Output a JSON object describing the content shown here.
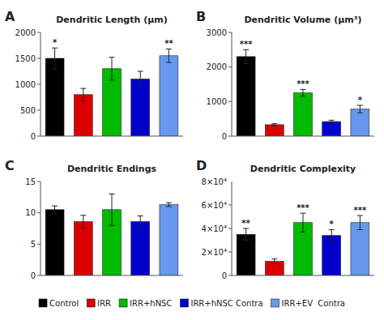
{
  "chart_data": [
    {
      "type": "bar",
      "title": "Dendritic Length (μm)",
      "categories": [
        "Control",
        "IRR",
        "IRR+hNSC",
        "IRR+hNSC Contra",
        "IRR+EV  Contra"
      ],
      "values": [
        1500,
        800,
        1300,
        1100,
        1550
      ],
      "errors": [
        200,
        120,
        220,
        150,
        130
      ],
      "colors": [
        "#000000",
        "#dd0000",
        "#00bb00",
        "#0000cc",
        "#6699ee"
      ],
      "ylim": [
        0,
        2000
      ],
      "yticks": [
        0,
        500,
        1000,
        1500,
        2000
      ],
      "annotations": [
        {
          "text": "A"
        },
        {
          "text": "*",
          "category": "Control"
        },
        {
          "text": "**",
          "category": "IRR+EV  Contra"
        }
      ],
      "grid": false,
      "tick_labels": "y",
      "legend": "bottom"
    },
    {
      "type": "bar",
      "title": "Dendritic Volume (μm³)",
      "categories": [
        "Control",
        "IRR",
        "IRR+hNSC",
        "IRR+hNSC Contra",
        "IRR+EV  Contra"
      ],
      "values": [
        2300,
        330,
        1250,
        420,
        780
      ],
      "errors": [
        200,
        30,
        100,
        40,
        110
      ],
      "colors": [
        "#000000",
        "#dd0000",
        "#00bb00",
        "#0000cc",
        "#6699ee"
      ],
      "ylim": [
        0,
        3000
      ],
      "yticks": [
        0,
        1000,
        2000,
        3000
      ],
      "annotations": [
        {
          "text": "B"
        },
        {
          "text": "***",
          "category": "Control"
        },
        {
          "text": "***",
          "category": "IRR+hNSC"
        },
        {
          "text": "*",
          "category": "IRR+EV  Contra"
        }
      ],
      "grid": false,
      "tick_labels": "y"
    },
    {
      "type": "bar",
      "title": "Dendritic Endings",
      "categories": [
        "Control",
        "IRR",
        "IRR+hNSC",
        "IRR+hNSC Contra",
        "IRR+EV  Contra"
      ],
      "values": [
        10.5,
        8.6,
        10.5,
        8.6,
        11.3
      ],
      "errors": [
        0.6,
        1.0,
        2.5,
        0.9,
        0.3
      ],
      "colors": [
        "#000000",
        "#dd0000",
        "#00bb00",
        "#0000cc",
        "#6699ee"
      ],
      "ylim": [
        0,
        15
      ],
      "yticks": [
        0,
        5,
        10,
        15
      ],
      "annotations": [
        {
          "text": "C"
        }
      ],
      "grid": false,
      "tick_labels": "y"
    },
    {
      "type": "bar",
      "title": "Dendritic Complexity",
      "categories": [
        "Control",
        "IRR",
        "IRR+hNSC",
        "IRR+hNSC Contra",
        "IRR+EV  Contra"
      ],
      "values": [
        35000,
        12000,
        45000,
        34000,
        45000
      ],
      "errors": [
        5000,
        2000,
        8000,
        5000,
        6000
      ],
      "colors": [
        "#000000",
        "#dd0000",
        "#00bb00",
        "#0000cc",
        "#6699ee"
      ],
      "ylim": [
        0,
        80000
      ],
      "yticks": [
        0,
        {
          "value": 20000,
          "label": "2×10⁴"
        },
        {
          "value": 40000,
          "label": "4×10⁴"
        },
        {
          "value": 60000,
          "label": "6×10⁴"
        }
      ],
      "annotations": [
        {
          "text": "D"
        },
        {
          "text": "8×10⁴",
          "y": 80000
        },
        {
          "text": "**",
          "category": "Control"
        },
        {
          "text": "***",
          "category": "IRR+hNSC"
        },
        {
          "text": "*",
          "category": "IRR+hNSC Contra"
        },
        {
          "text": "***",
          "category": "IRR+EV  Contra"
        }
      ],
      "grid": false,
      "tick_labels": "y"
    }
  ]
}
